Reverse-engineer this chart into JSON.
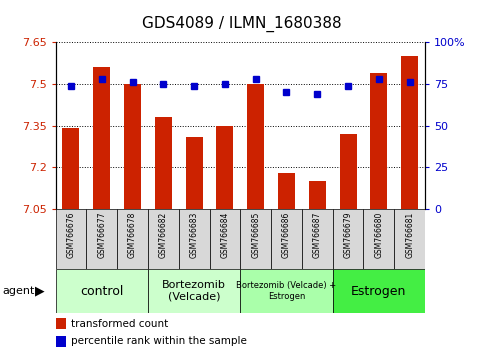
{
  "title": "GDS4089 / ILMN_1680388",
  "samples": [
    "GSM766676",
    "GSM766677",
    "GSM766678",
    "GSM766682",
    "GSM766683",
    "GSM766684",
    "GSM766685",
    "GSM766686",
    "GSM766687",
    "GSM766679",
    "GSM766680",
    "GSM766681"
  ],
  "bar_values": [
    7.34,
    7.56,
    7.5,
    7.38,
    7.31,
    7.35,
    7.5,
    7.18,
    7.15,
    7.32,
    7.54,
    7.6
  ],
  "percentile_values": [
    74,
    78,
    76,
    75,
    74,
    75,
    78,
    70,
    69,
    74,
    78,
    76
  ],
  "ylim_left": [
    7.05,
    7.65
  ],
  "ylim_right": [
    0,
    100
  ],
  "yticks_left": [
    7.05,
    7.2,
    7.35,
    7.5,
    7.65
  ],
  "yticks_right": [
    0,
    25,
    50,
    75,
    100
  ],
  "bar_color": "#cc2200",
  "dot_color": "#0000cc",
  "agent_groups": [
    {
      "label": "control",
      "start": 0,
      "end": 3,
      "color": "#ccffcc",
      "fontsize": 9
    },
    {
      "label": "Bortezomib\n(Velcade)",
      "start": 3,
      "end": 6,
      "color": "#ccffcc",
      "fontsize": 8
    },
    {
      "label": "Bortezomib (Velcade) +\nEstrogen",
      "start": 6,
      "end": 9,
      "color": "#aaffaa",
      "fontsize": 6
    },
    {
      "label": "Estrogen",
      "start": 9,
      "end": 12,
      "color": "#44ee44",
      "fontsize": 9
    }
  ],
  "legend_bar_label": "transformed count",
  "legend_dot_label": "percentile rank within the sample",
  "title_fontsize": 11,
  "tick_fontsize": 8,
  "sample_fontsize": 5.5
}
